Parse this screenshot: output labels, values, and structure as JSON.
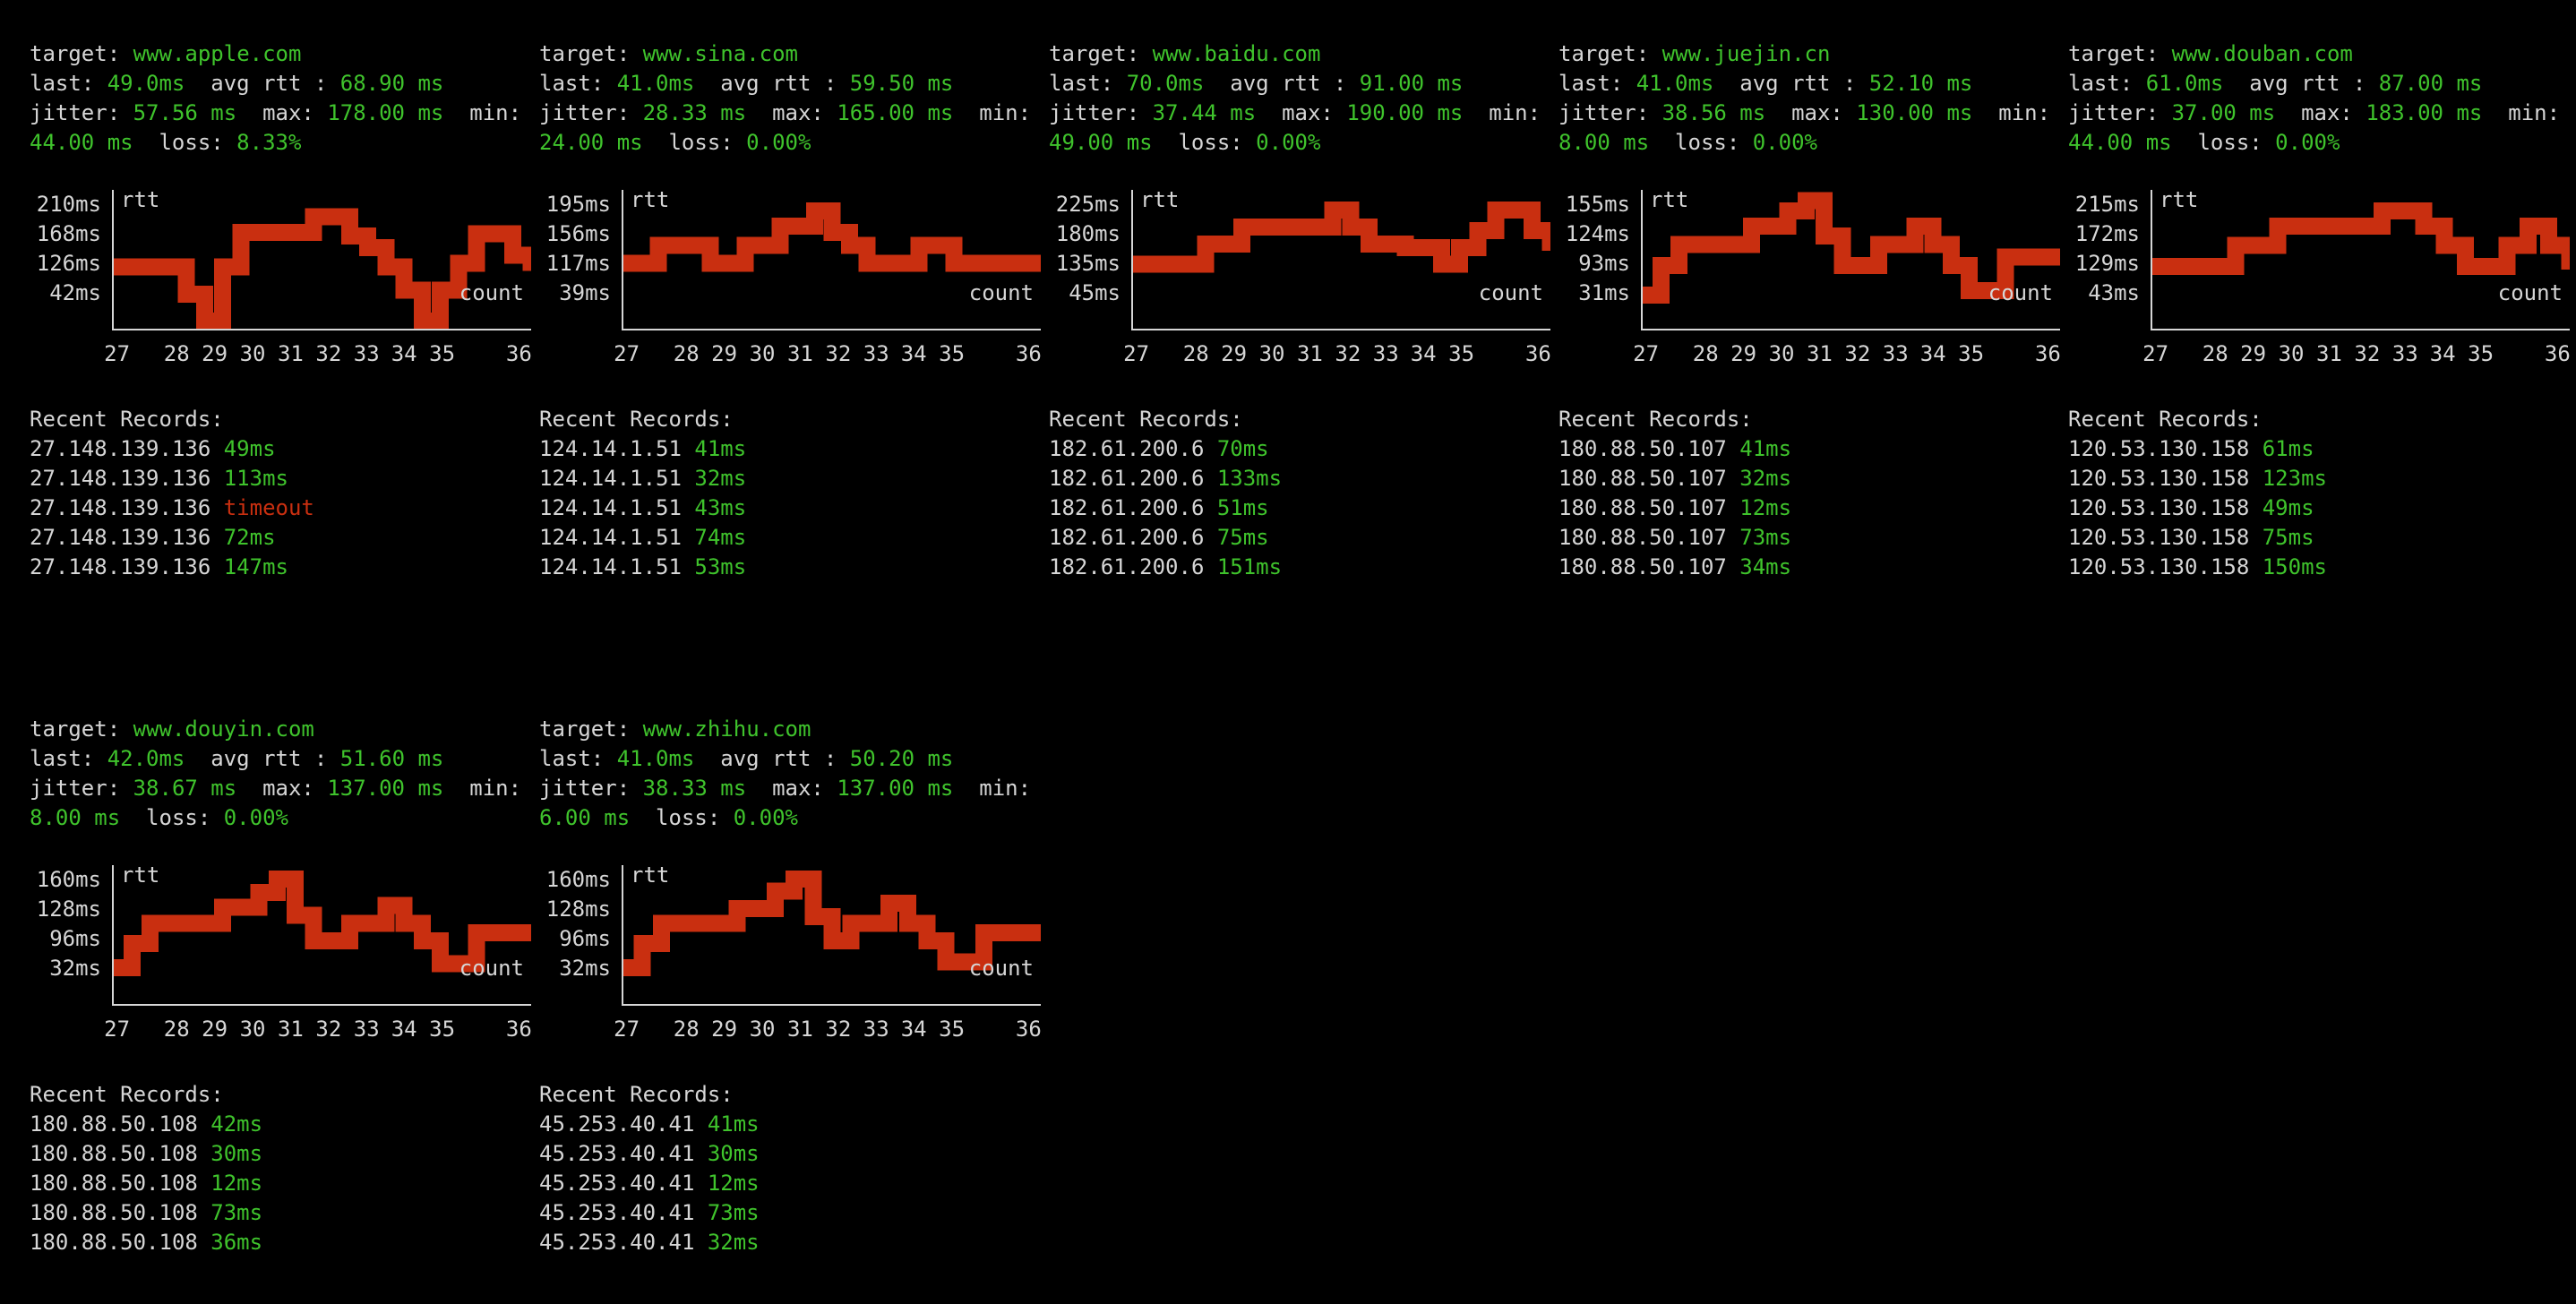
{
  "colors": {
    "background": "#000000",
    "text": "#d6d6d6",
    "green": "#3fc32c",
    "red": "#c92f10"
  },
  "labels": {
    "target": "target:",
    "last": "last:",
    "avg_rtt": "avg rtt :",
    "jitter": "jitter:",
    "max": "max:",
    "min": "min:",
    "loss": "loss:",
    "rtt_axis": "rtt",
    "count_axis": "count",
    "recent_records": "Recent Records:"
  },
  "chart_axis": {
    "xlabel": "count",
    "ylabel": "rtt",
    "x_ticks": [
      "27",
      "28",
      "29",
      "30",
      "31",
      "32",
      "33",
      "34",
      "35",
      "36"
    ],
    "x_tick_pos": [
      0.012,
      0.155,
      0.246,
      0.337,
      0.428,
      0.519,
      0.61,
      0.7,
      0.791,
      0.975
    ]
  },
  "panels": [
    {
      "target": "www.apple.com",
      "last": "49.0ms",
      "avg_rtt": "68.90 ms",
      "jitter": "57.56 ms",
      "max": "178.00 ms",
      "min": "44.00 ms",
      "loss": "8.33%",
      "chart": {
        "type": "line",
        "ylabel": "rtt",
        "xlabel": "count",
        "grid": false,
        "y_ticks": [
          "210ms",
          "168ms",
          "126ms",
          "42ms"
        ],
        "ylim": [
          45,
          225
        ],
        "values": [
          125,
          125,
          125,
          125,
          90,
          55,
          125,
          170,
          170,
          170,
          170,
          190,
          190,
          165,
          150,
          125,
          95,
          55,
          95,
          130,
          168,
          168,
          140,
          120
        ]
      },
      "records": [
        {
          "ip": "27.148.139.136",
          "latency": "49ms",
          "status": "ok"
        },
        {
          "ip": "27.148.139.136",
          "latency": "113ms",
          "status": "ok"
        },
        {
          "ip": "27.148.139.136",
          "latency": "timeout",
          "status": "timeout"
        },
        {
          "ip": "27.148.139.136",
          "latency": "72ms",
          "status": "ok"
        },
        {
          "ip": "27.148.139.136",
          "latency": "147ms",
          "status": "ok"
        }
      ]
    },
    {
      "target": "www.sina.com",
      "last": "41.0ms",
      "avg_rtt": "59.50 ms",
      "jitter": "28.33 ms",
      "max": "165.00 ms",
      "min": "24.00 ms",
      "loss": "0.00%",
      "chart": {
        "type": "line",
        "ylabel": "rtt",
        "xlabel": "count",
        "grid": false,
        "y_ticks": [
          "195ms",
          "156ms",
          "117ms",
          "39ms"
        ],
        "ylim": [
          25,
          205
        ],
        "values": [
          110,
          110,
          133,
          133,
          133,
          110,
          110,
          133,
          133,
          158,
          158,
          178,
          150,
          133,
          110,
          110,
          110,
          133,
          133,
          110,
          110,
          110,
          110,
          110,
          110
        ]
      },
      "records": [
        {
          "ip": "124.14.1.51",
          "latency": "41ms",
          "status": "ok"
        },
        {
          "ip": "124.14.1.51",
          "latency": "32ms",
          "status": "ok"
        },
        {
          "ip": "124.14.1.51",
          "latency": "43ms",
          "status": "ok"
        },
        {
          "ip": "124.14.1.51",
          "latency": "74ms",
          "status": "ok"
        },
        {
          "ip": "124.14.1.51",
          "latency": "53ms",
          "status": "ok"
        }
      ]
    },
    {
      "target": "www.baidu.com",
      "last": "70.0ms",
      "avg_rtt": "91.00 ms",
      "jitter": "37.44 ms",
      "max": "190.00 ms",
      "min": "49.00 ms",
      "loss": "0.00%",
      "chart": {
        "type": "line",
        "ylabel": "rtt",
        "xlabel": "count",
        "grid": false,
        "y_ticks": [
          "225ms",
          "180ms",
          "135ms",
          "45ms"
        ],
        "ylim": [
          30,
          235
        ],
        "values": [
          125,
          125,
          125,
          125,
          155,
          155,
          180,
          180,
          180,
          180,
          180,
          205,
          180,
          155,
          155,
          150,
          150,
          125,
          150,
          175,
          205,
          205,
          175,
          145
        ]
      },
      "records": [
        {
          "ip": "182.61.200.6",
          "latency": "70ms",
          "status": "ok"
        },
        {
          "ip": "182.61.200.6",
          "latency": "133ms",
          "status": "ok"
        },
        {
          "ip": "182.61.200.6",
          "latency": "51ms",
          "status": "ok"
        },
        {
          "ip": "182.61.200.6",
          "latency": "75ms",
          "status": "ok"
        },
        {
          "ip": "182.61.200.6",
          "latency": "151ms",
          "status": "ok"
        }
      ]
    },
    {
      "target": "www.juejin.cn",
      "last": "41.0ms",
      "avg_rtt": "52.10 ms",
      "jitter": "38.56 ms",
      "max": "130.00 ms",
      "min": "8.00 ms",
      "loss": "0.00%",
      "chart": {
        "type": "line",
        "ylabel": "rtt",
        "xlabel": "count",
        "grid": false,
        "y_ticks": [
          "155ms",
          "124ms",
          "93ms",
          "31ms"
        ],
        "ylim": [
          0,
          165
        ],
        "values": [
          40,
          75,
          100,
          100,
          100,
          100,
          122,
          122,
          140,
          152,
          110,
          75,
          75,
          100,
          100,
          122,
          100,
          75,
          45,
          45,
          85,
          85,
          85,
          85
        ]
      },
      "records": [
        {
          "ip": "180.88.50.107",
          "latency": "41ms",
          "status": "ok"
        },
        {
          "ip": "180.88.50.107",
          "latency": "32ms",
          "status": "ok"
        },
        {
          "ip": "180.88.50.107",
          "latency": "12ms",
          "status": "ok"
        },
        {
          "ip": "180.88.50.107",
          "latency": "73ms",
          "status": "ok"
        },
        {
          "ip": "180.88.50.107",
          "latency": "34ms",
          "status": "ok"
        }
      ]
    },
    {
      "target": "www.douban.com",
      "last": "61.0ms",
      "avg_rtt": "87.00 ms",
      "jitter": "37.00 ms",
      "max": "183.00 ms",
      "min": "44.00 ms",
      "loss": "0.00%",
      "chart": {
        "type": "line",
        "ylabel": "rtt",
        "xlabel": "count",
        "grid": false,
        "y_ticks": [
          "215ms",
          "172ms",
          "129ms",
          "43ms"
        ],
        "ylim": [
          30,
          230
        ],
        "values": [
          120,
          120,
          120,
          120,
          150,
          150,
          178,
          178,
          178,
          178,
          178,
          200,
          200,
          178,
          150,
          120,
          120,
          150,
          178,
          150,
          115
        ]
      },
      "records": [
        {
          "ip": "120.53.130.158",
          "latency": "61ms",
          "status": "ok"
        },
        {
          "ip": "120.53.130.158",
          "latency": "123ms",
          "status": "ok"
        },
        {
          "ip": "120.53.130.158",
          "latency": "49ms",
          "status": "ok"
        },
        {
          "ip": "120.53.130.158",
          "latency": "75ms",
          "status": "ok"
        },
        {
          "ip": "120.53.130.158",
          "latency": "150ms",
          "status": "ok"
        }
      ]
    },
    {
      "target": "www.douyin.com",
      "last": "42.0ms",
      "avg_rtt": "51.60 ms",
      "jitter": "38.67 ms",
      "max": "137.00 ms",
      "min": "8.00 ms",
      "loss": "0.00%",
      "chart": {
        "type": "line",
        "ylabel": "rtt",
        "xlabel": "count",
        "grid": false,
        "y_ticks": [
          "160ms",
          "128ms",
          "96ms",
          "32ms"
        ],
        "ylim": [
          0,
          172
        ],
        "values": [
          45,
          75,
          100,
          100,
          100,
          100,
          120,
          120,
          138,
          155,
          110,
          78,
          78,
          100,
          100,
          122,
          100,
          78,
          50,
          50,
          88,
          88,
          88,
          88
        ]
      },
      "records": [
        {
          "ip": "180.88.50.108",
          "latency": "42ms",
          "status": "ok"
        },
        {
          "ip": "180.88.50.108",
          "latency": "30ms",
          "status": "ok"
        },
        {
          "ip": "180.88.50.108",
          "latency": "12ms",
          "status": "ok"
        },
        {
          "ip": "180.88.50.108",
          "latency": "73ms",
          "status": "ok"
        },
        {
          "ip": "180.88.50.108",
          "latency": "36ms",
          "status": "ok"
        }
      ]
    },
    {
      "target": "www.zhihu.com",
      "last": "41.0ms",
      "avg_rtt": "50.20 ms",
      "jitter": "38.33 ms",
      "max": "137.00 ms",
      "min": "6.00 ms",
      "loss": "0.00%",
      "chart": {
        "type": "line",
        "ylabel": "rtt",
        "xlabel": "count",
        "grid": false,
        "y_ticks": [
          "160ms",
          "128ms",
          "96ms",
          "32ms"
        ],
        "ylim": [
          0,
          172
        ],
        "values": [
          45,
          75,
          100,
          100,
          100,
          100,
          118,
          118,
          140,
          155,
          108,
          78,
          100,
          100,
          125,
          100,
          78,
          52,
          52,
          88,
          88,
          88,
          88
        ]
      },
      "records": [
        {
          "ip": "45.253.40.41",
          "latency": "41ms",
          "status": "ok"
        },
        {
          "ip": "45.253.40.41",
          "latency": "30ms",
          "status": "ok"
        },
        {
          "ip": "45.253.40.41",
          "latency": "12ms",
          "status": "ok"
        },
        {
          "ip": "45.253.40.41",
          "latency": "73ms",
          "status": "ok"
        },
        {
          "ip": "45.253.40.41",
          "latency": "32ms",
          "status": "ok"
        }
      ]
    }
  ]
}
